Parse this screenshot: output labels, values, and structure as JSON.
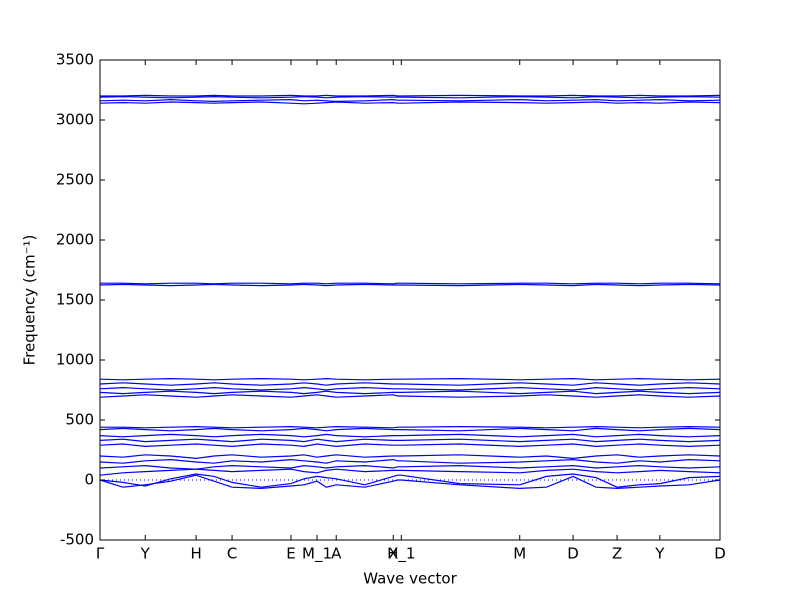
{
  "chart_data": {
    "type": "line",
    "xlabel": "Wave vector",
    "ylabel": "Frequency (cm⁻¹)",
    "color": "#0000ff",
    "xlim": [
      0,
      1
    ],
    "ylim": [
      -500,
      3500
    ],
    "yticks": [
      -500,
      0,
      500,
      1000,
      1500,
      2000,
      2500,
      3000,
      3500
    ],
    "xticks": [
      {
        "value": 0,
        "label": "Γ"
      },
      {
        "value": 0.073,
        "label": "Y"
      },
      {
        "value": 0.155,
        "label": "H"
      },
      {
        "value": 0.213,
        "label": "C"
      },
      {
        "value": 0.308,
        "label": "E"
      },
      {
        "value": 0.35,
        "label": "M_1"
      },
      {
        "value": 0.381,
        "label": "A"
      },
      {
        "value": 0.473,
        "label": "X"
      },
      {
        "value": 0.486,
        "label": "H_1"
      },
      {
        "value": 0.677,
        "label": "M"
      },
      {
        "value": 0.763,
        "label": "D"
      },
      {
        "value": 0.834,
        "label": "Z"
      },
      {
        "value": 0.903,
        "label": "Y"
      },
      {
        "value": 1,
        "label": "D"
      }
    ],
    "zero_line": 0,
    "x": [
      0,
      0.037,
      0.073,
      0.114,
      0.155,
      0.184,
      0.213,
      0.26,
      0.308,
      0.329,
      0.35,
      0.365,
      0.381,
      0.427,
      0.473,
      0.48,
      0.486,
      0.58,
      0.677,
      0.72,
      0.763,
      0.8,
      0.834,
      0.87,
      0.903,
      0.95,
      1
    ],
    "series": [
      {
        "values": [
          0,
          -60,
          -40,
          -10,
          40,
          -10,
          -60,
          -70,
          -50,
          -40,
          -10,
          -60,
          -40,
          -60,
          -10,
          0,
          0,
          -40,
          -70,
          -60,
          30,
          -60,
          -70,
          -60,
          -50,
          -40,
          0
        ]
      },
      {
        "values": [
          0,
          -20,
          -50,
          10,
          50,
          30,
          -20,
          -60,
          -30,
          10,
          30,
          20,
          10,
          -40,
          30,
          40,
          40,
          -30,
          -40,
          30,
          50,
          20,
          -60,
          -40,
          -30,
          20,
          30
        ]
      },
      {
        "values": [
          40,
          60,
          70,
          80,
          90,
          80,
          70,
          80,
          90,
          70,
          60,
          80,
          90,
          70,
          80,
          80,
          80,
          70,
          60,
          80,
          90,
          70,
          60,
          70,
          80,
          70,
          60
        ]
      },
      {
        "values": [
          100,
          110,
          120,
          100,
          90,
          110,
          120,
          110,
          100,
          120,
          110,
          100,
          110,
          120,
          100,
          110,
          110,
          120,
          100,
          110,
          120,
          100,
          110,
          120,
          110,
          100,
          110
        ]
      },
      {
        "values": [
          150,
          140,
          160,
          170,
          150,
          140,
          160,
          150,
          170,
          160,
          150,
          140,
          160,
          150,
          170,
          160,
          160,
          140,
          150,
          160,
          170,
          150,
          140,
          160,
          150,
          170,
          160
        ]
      },
      {
        "values": [
          200,
          190,
          210,
          200,
          180,
          200,
          210,
          190,
          200,
          210,
          190,
          200,
          210,
          190,
          200,
          200,
          200,
          210,
          190,
          200,
          180,
          200,
          210,
          190,
          200,
          210,
          200
        ]
      },
      {
        "values": [
          290,
          300,
          280,
          290,
          300,
          290,
          280,
          300,
          290,
          280,
          300,
          290,
          280,
          300,
          290,
          290,
          290,
          300,
          280,
          290,
          300,
          280,
          290,
          300,
          290,
          280,
          290
        ]
      },
      {
        "values": [
          330,
          340,
          320,
          330,
          340,
          330,
          320,
          340,
          330,
          320,
          340,
          330,
          320,
          340,
          330,
          330,
          330,
          340,
          320,
          330,
          340,
          320,
          330,
          340,
          330,
          320,
          330
        ]
      },
      {
        "values": [
          370,
          360,
          370,
          380,
          370,
          360,
          370,
          380,
          370,
          360,
          370,
          380,
          370,
          360,
          370,
          370,
          370,
          380,
          360,
          370,
          380,
          360,
          370,
          380,
          370,
          360,
          370
        ]
      },
      {
        "values": [
          420,
          430,
          420,
          410,
          420,
          430,
          420,
          410,
          420,
          430,
          420,
          410,
          420,
          430,
          420,
          420,
          420,
          410,
          430,
          420,
          410,
          430,
          420,
          410,
          420,
          430,
          420
        ]
      },
      {
        "values": [
          440,
          440,
          435,
          440,
          445,
          440,
          435,
          440,
          445,
          440,
          435,
          440,
          445,
          440,
          435,
          440,
          440,
          445,
          440,
          435,
          440,
          445,
          440,
          435,
          440,
          445,
          440
        ]
      },
      {
        "values": [
          690,
          700,
          710,
          700,
          690,
          700,
          710,
          700,
          690,
          700,
          710,
          700,
          690,
          700,
          710,
          700,
          700,
          690,
          700,
          710,
          700,
          690,
          700,
          710,
          700,
          690,
          700
        ]
      },
      {
        "values": [
          730,
          720,
          730,
          740,
          730,
          720,
          730,
          740,
          730,
          720,
          730,
          740,
          730,
          720,
          730,
          730,
          730,
          740,
          720,
          730,
          740,
          720,
          730,
          740,
          730,
          720,
          730
        ]
      },
      {
        "values": [
          760,
          770,
          760,
          750,
          760,
          770,
          760,
          750,
          760,
          770,
          760,
          750,
          760,
          770,
          760,
          760,
          760,
          750,
          770,
          760,
          750,
          770,
          760,
          750,
          760,
          770,
          760
        ]
      },
      {
        "values": [
          800,
          810,
          800,
          790,
          800,
          810,
          800,
          790,
          800,
          810,
          800,
          790,
          800,
          810,
          800,
          800,
          800,
          790,
          810,
          800,
          790,
          810,
          800,
          790,
          800,
          810,
          800
        ]
      },
      {
        "values": [
          840,
          835,
          840,
          845,
          840,
          835,
          840,
          845,
          840,
          835,
          840,
          845,
          840,
          835,
          840,
          840,
          840,
          845,
          835,
          840,
          845,
          835,
          840,
          845,
          840,
          835,
          840
        ]
      },
      {
        "values": [
          1625,
          1630,
          1625,
          1620,
          1625,
          1630,
          1625,
          1620,
          1625,
          1630,
          1625,
          1620,
          1625,
          1630,
          1625,
          1625,
          1625,
          1620,
          1630,
          1625,
          1620,
          1630,
          1625,
          1620,
          1625,
          1630,
          1625
        ]
      },
      {
        "values": [
          1640,
          1640,
          1635,
          1640,
          1640,
          1635,
          1640,
          1640,
          1635,
          1640,
          1640,
          1635,
          1640,
          1640,
          1635,
          1640,
          1640,
          1635,
          1640,
          1640,
          1635,
          1640,
          1640,
          1635,
          1640,
          1640,
          1635
        ]
      },
      {
        "values": [
          3140,
          3145,
          3140,
          3150,
          3145,
          3140,
          3145,
          3150,
          3140,
          3135,
          3140,
          3145,
          3150,
          3140,
          3145,
          3140,
          3140,
          3150,
          3145,
          3140,
          3145,
          3150,
          3140,
          3145,
          3140,
          3150,
          3145
        ]
      },
      {
        "values": [
          3160,
          3165,
          3160,
          3170,
          3160,
          3155,
          3160,
          3165,
          3170,
          3160,
          3165,
          3160,
          3155,
          3160,
          3170,
          3165,
          3165,
          3160,
          3170,
          3160,
          3165,
          3170,
          3160,
          3165,
          3170,
          3160,
          3165
        ]
      },
      {
        "values": [
          3190,
          3195,
          3190,
          3185,
          3190,
          3195,
          3190,
          3185,
          3190,
          3195,
          3190,
          3185,
          3190,
          3195,
          3190,
          3190,
          3190,
          3185,
          3195,
          3190,
          3185,
          3195,
          3190,
          3185,
          3190,
          3195,
          3190
        ]
      },
      {
        "values": [
          3200,
          3200,
          3205,
          3200,
          3200,
          3205,
          3200,
          3200,
          3205,
          3200,
          3200,
          3205,
          3200,
          3200,
          3205,
          3200,
          3200,
          3205,
          3200,
          3200,
          3205,
          3200,
          3200,
          3205,
          3200,
          3200,
          3205
        ]
      }
    ]
  }
}
